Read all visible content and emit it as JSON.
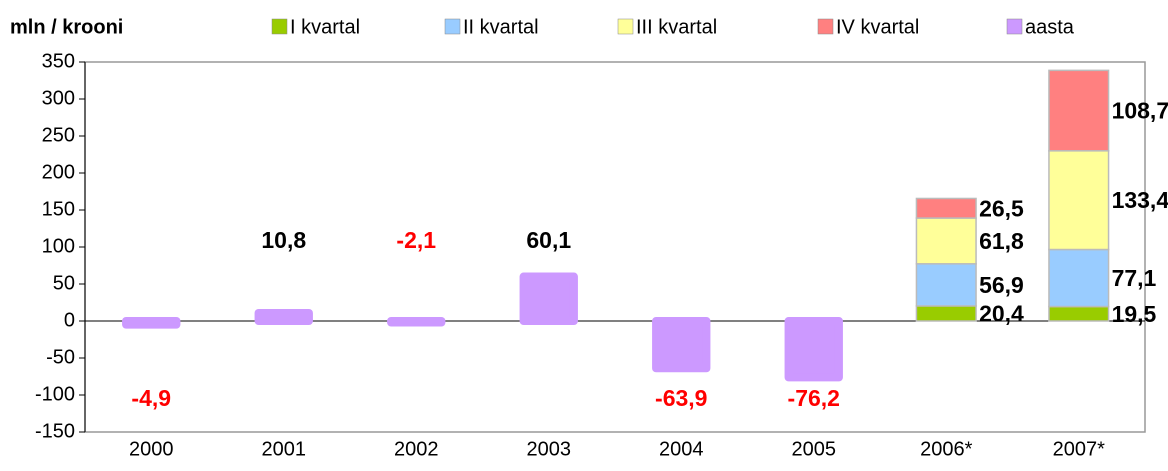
{
  "chart_data": {
    "type": "bar",
    "y_label": "mln / krooni",
    "categories": [
      "2000",
      "2001",
      "2002",
      "2003",
      "2004",
      "2005",
      "2006*",
      "2007*"
    ],
    "series": [
      {
        "name": "I kvartal",
        "color": "#99cc00",
        "values": [
          null,
          null,
          null,
          null,
          null,
          null,
          20.4,
          19.5
        ],
        "value_labels": [
          null,
          null,
          null,
          null,
          null,
          null,
          "20,4",
          "19,5"
        ]
      },
      {
        "name": "II kvartal",
        "color": "#99ccff",
        "values": [
          null,
          null,
          null,
          null,
          null,
          null,
          56.9,
          77.1
        ],
        "value_labels": [
          null,
          null,
          null,
          null,
          null,
          null,
          "56,9",
          "77,1"
        ]
      },
      {
        "name": "III kvartal",
        "color": "#ffff99",
        "values": [
          null,
          null,
          null,
          null,
          null,
          null,
          61.8,
          133.4
        ],
        "value_labels": [
          null,
          null,
          null,
          null,
          null,
          null,
          "61,8",
          "133,4"
        ]
      },
      {
        "name": "IV kvartal",
        "color": "#ff8080",
        "values": [
          null,
          null,
          null,
          null,
          null,
          null,
          26.5,
          108.7
        ],
        "value_labels": [
          null,
          null,
          null,
          null,
          null,
          null,
          "26,5",
          "108,7"
        ]
      },
      {
        "name": "aasta",
        "color": "#cc99ff",
        "values": [
          -4.9,
          10.8,
          -2.1,
          60.1,
          -63.9,
          -76.2,
          null,
          null
        ],
        "value_labels": [
          "-4,9",
          "10,8",
          "-2,1",
          "60,1",
          "-63,9",
          "-76,2",
          null,
          null
        ]
      }
    ],
    "ylim": [
      -150,
      350
    ],
    "yticks": [
      -150,
      -100,
      -50,
      0,
      50,
      100,
      150,
      200,
      250,
      300,
      350
    ],
    "grid": false
  }
}
